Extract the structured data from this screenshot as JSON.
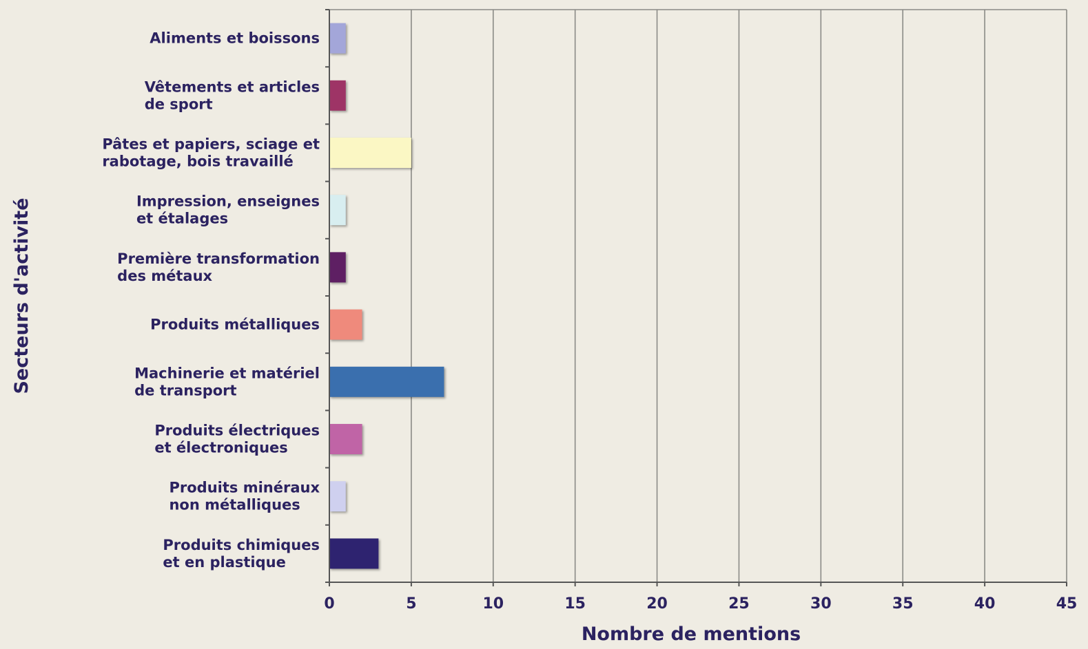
{
  "chart_data": {
    "type": "bar",
    "orientation": "horizontal",
    "title": "",
    "xlabel": "Nombre de mentions",
    "ylabel": "Secteurs d'activité",
    "xlim": [
      0,
      45
    ],
    "xticks": [
      0,
      5,
      10,
      15,
      20,
      25,
      30,
      35,
      40,
      45
    ],
    "grid": true,
    "categories": [
      [
        "Aliments et boissons"
      ],
      [
        "Vêtements et articles",
        "de sport"
      ],
      [
        "Pâtes et papiers, sciage et",
        "rabotage, bois travaillé"
      ],
      [
        "Impression, enseignes",
        "et étalages"
      ],
      [
        "Première transformation",
        "des métaux"
      ],
      [
        "Produits métalliques"
      ],
      [
        "Machinerie et matériel",
        "de transport"
      ],
      [
        "Produits électriques",
        "et électroniques"
      ],
      [
        "Produits minéraux",
        "non métalliques"
      ],
      [
        "Produits chimiques",
        "et en plastique"
      ]
    ],
    "values": [
      1,
      1,
      5,
      1,
      1,
      2,
      7,
      2,
      1,
      3
    ],
    "colors": [
      "#a3a6d9",
      "#9e3466",
      "#fbf7c4",
      "#d8eef0",
      "#5e1f63",
      "#ef8a7c",
      "#3a6fae",
      "#c064a6",
      "#cfd0ef",
      "#2e2370"
    ]
  }
}
